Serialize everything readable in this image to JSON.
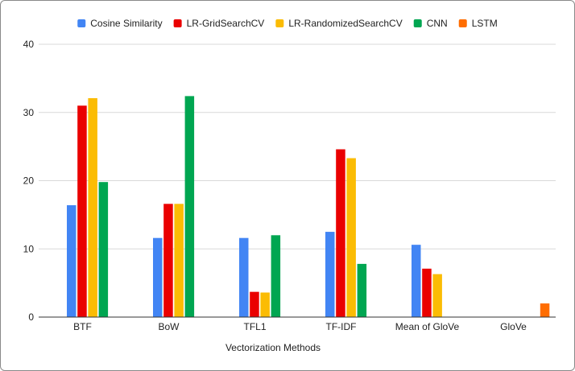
{
  "chart_data": {
    "type": "bar",
    "title": "",
    "xlabel": "Vectorization Methods",
    "ylabel": "",
    "categories": [
      "BTF",
      "BoW",
      "TFL1",
      "TF-IDF",
      "Mean of GloVe",
      "GloVe"
    ],
    "ylim": [
      0,
      40
    ],
    "yticks": [
      0,
      10,
      20,
      30,
      40
    ],
    "grid": true,
    "legend_position": "top",
    "series": [
      {
        "name": "Cosine Similarity",
        "color": "#4285f4",
        "values": [
          16.4,
          11.6,
          11.6,
          12.5,
          10.6,
          null
        ]
      },
      {
        "name": "LR-GridSearchCV",
        "color": "#ea0000",
        "values": [
          31.0,
          16.6,
          3.7,
          24.6,
          7.1,
          null
        ]
      },
      {
        "name": "LR-RandomizedSearchCV",
        "color": "#fbbc04",
        "values": [
          32.1,
          16.6,
          3.6,
          23.3,
          6.3,
          null
        ]
      },
      {
        "name": "CNN",
        "color": "#00a651",
        "values": [
          19.8,
          32.4,
          12.0,
          7.8,
          null,
          null
        ]
      },
      {
        "name": "LSTM",
        "color": "#ff6d01",
        "values": [
          null,
          null,
          null,
          null,
          null,
          2.0
        ]
      }
    ]
  }
}
